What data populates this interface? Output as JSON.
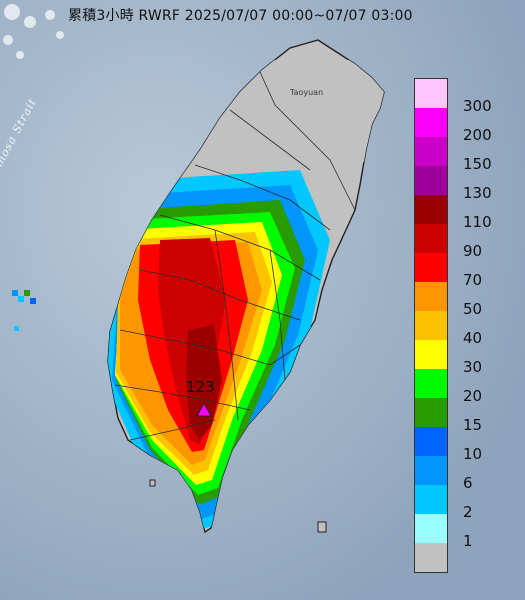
{
  "title": "累積3小時 RWRF 2025/07/07 00:00~07/07 03:00",
  "sea_label": "Formosa Strait",
  "city_label": "Taoyuan",
  "max_value_label": "123",
  "legend": [
    {
      "label": "300",
      "color": "#fdc5fb"
    },
    {
      "label": "200",
      "color": "#fb00fb"
    },
    {
      "label": "150",
      "color": "#cb00c6"
    },
    {
      "label": "130",
      "color": "#9e009c"
    },
    {
      "label": "110",
      "color": "#9b0000"
    },
    {
      "label": "90",
      "color": "#cc0000"
    },
    {
      "label": "70",
      "color": "#fe0000"
    },
    {
      "label": "50",
      "color": "#fe9600"
    },
    {
      "label": "40",
      "color": "#fec300"
    },
    {
      "label": "30",
      "color": "#fefe00"
    },
    {
      "label": "20",
      "color": "#00fa00"
    },
    {
      "label": "15",
      "color": "#279b00"
    },
    {
      "label": "10",
      "color": "#0064fe"
    },
    {
      "label": "6",
      "color": "#0096fe"
    },
    {
      "label": "2",
      "color": "#00c8fe"
    },
    {
      "label": "1",
      "color": "#9afefe"
    },
    {
      "label": "",
      "color": "#c1c1c1"
    }
  ]
}
